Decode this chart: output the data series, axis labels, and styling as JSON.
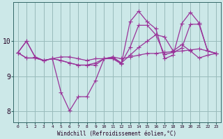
{
  "x": [
    0,
    1,
    2,
    3,
    4,
    5,
    6,
    7,
    8,
    9,
    10,
    11,
    12,
    13,
    14,
    15,
    16,
    17,
    18,
    19,
    20,
    21,
    22,
    23
  ],
  "line1": [
    9.67,
    10.0,
    9.55,
    9.45,
    9.5,
    9.55,
    9.55,
    9.5,
    9.45,
    9.5,
    9.5,
    9.55,
    9.5,
    9.55,
    9.6,
    9.65,
    9.65,
    9.68,
    9.7,
    9.72,
    9.75,
    9.78,
    9.72,
    9.65
  ],
  "line2": [
    9.67,
    10.0,
    9.55,
    9.45,
    9.5,
    8.55,
    8.02,
    8.42,
    8.42,
    8.88,
    9.5,
    9.5,
    9.35,
    10.55,
    10.85,
    10.55,
    10.35,
    9.5,
    9.6,
    10.5,
    10.82,
    10.52,
    9.72,
    9.65
  ],
  "line3": [
    9.67,
    9.52,
    9.52,
    9.45,
    9.5,
    9.45,
    9.38,
    9.32,
    9.32,
    9.38,
    9.5,
    9.55,
    9.38,
    9.82,
    10.45,
    10.45,
    10.18,
    9.62,
    9.68,
    9.8,
    10.48,
    10.48,
    9.72,
    9.65
  ],
  "line4": [
    9.67,
    9.52,
    9.52,
    9.45,
    9.5,
    9.45,
    9.38,
    9.32,
    9.32,
    9.32,
    9.5,
    9.52,
    9.38,
    9.6,
    9.82,
    10.0,
    10.18,
    10.12,
    9.72,
    9.9,
    9.72,
    9.52,
    9.6,
    9.65
  ],
  "color": "#993399",
  "bg_color": "#cce8e8",
  "grid_color": "#99bbbb",
  "xlabel": "Windchill (Refroidissement éolien,°C)",
  "yticks": [
    8,
    9,
    10
  ],
  "ylim": [
    7.7,
    11.1
  ],
  "xlim": [
    -0.5,
    23.5
  ],
  "marker": "+",
  "markersize": 4.0,
  "linewidth": 0.9
}
